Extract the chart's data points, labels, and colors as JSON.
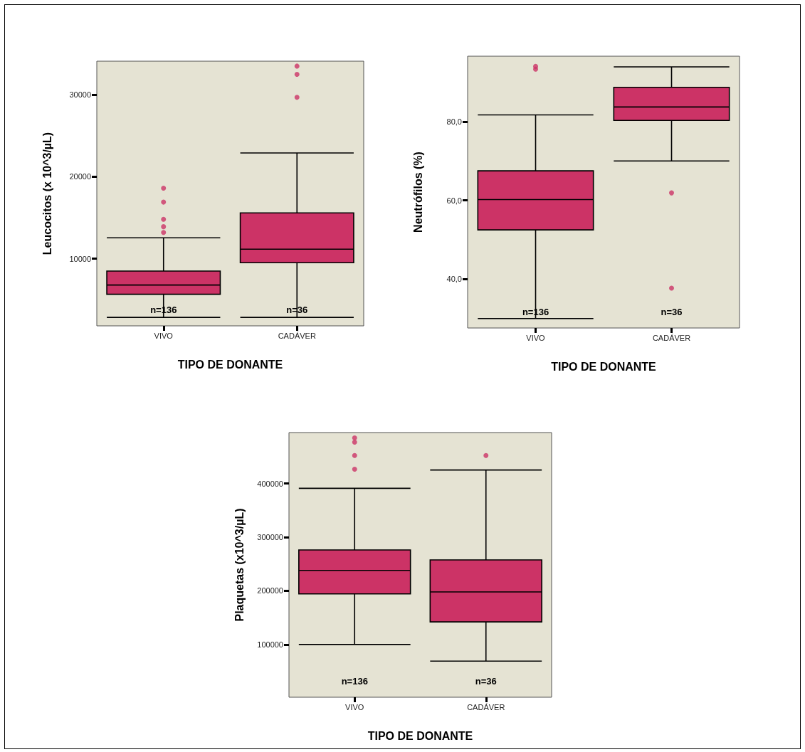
{
  "chart_data": [
    {
      "type": "box",
      "xlabel": "TIPO DE DONANTE",
      "ylabel": "Leucocitos (x 10^3/µL)",
      "categories": [
        "VIVO",
        "CADÁVER"
      ],
      "color": "#cc3366",
      "boxes": [
        {
          "low": 2830,
          "q1": 5650,
          "median": 6780,
          "q3": 8490,
          "high": 12550,
          "outliers": [
            13200,
            13900,
            14800,
            16900,
            18600
          ]
        },
        {
          "low": 2830,
          "q1": 9500,
          "median": 11150,
          "q3": 15590,
          "high": 22900,
          "outliers": [
            29700,
            32500,
            33500
          ]
        }
      ],
      "ylim": [
        1800,
        34100
      ],
      "yticks": [
        10000,
        20000,
        30000
      ],
      "annotations": [
        "n=136",
        "n=36"
      ]
    },
    {
      "type": "box",
      "xlabel": "TIPO DE DONANTE",
      "ylabel": "Neutrófilos (%)",
      "categories": [
        "VIVO",
        "CADÁVER"
      ],
      "color": "#cc3366",
      "boxes": [
        {
          "low": 30.0,
          "q1": 52.5,
          "median": 60.2,
          "q3": 67.5,
          "high": 81.7,
          "outliers": [
            93.3,
            94.0
          ]
        },
        {
          "low": 70.0,
          "q1": 80.3,
          "median": 83.7,
          "q3": 88.7,
          "high": 93.9,
          "outliers": [
            61.9,
            37.7
          ]
        }
      ],
      "ylim": [
        27.6,
        96.6
      ],
      "yticks": [
        {
          "value": 40,
          "label": "40,0"
        },
        {
          "value": 60,
          "label": "60,0"
        },
        {
          "value": 80,
          "label": "80,0"
        }
      ],
      "annotations": [
        "n=136",
        "n=36"
      ]
    },
    {
      "type": "box",
      "xlabel": "TIPO DE DONANTE",
      "ylabel": "Plaquetas (x10^3/µL)",
      "categories": [
        "VIVO",
        "CADÁVER"
      ],
      "color": "#cc3366",
      "boxes": [
        {
          "low": 100000,
          "q1": 194300,
          "median": 238100,
          "q3": 276100,
          "high": 391100,
          "outliers": [
            426600,
            452200,
            477000,
            485000
          ]
        },
        {
          "low": 69000,
          "q1": 142100,
          "median": 197900,
          "q3": 257600,
          "high": 425200,
          "outliers": [
            452200
          ]
        }
      ],
      "ylim": [
        1700,
        495000
      ],
      "yticks": [
        100000,
        200000,
        300000,
        400000
      ],
      "annotations": [
        "n=136",
        "n=36"
      ]
    }
  ]
}
